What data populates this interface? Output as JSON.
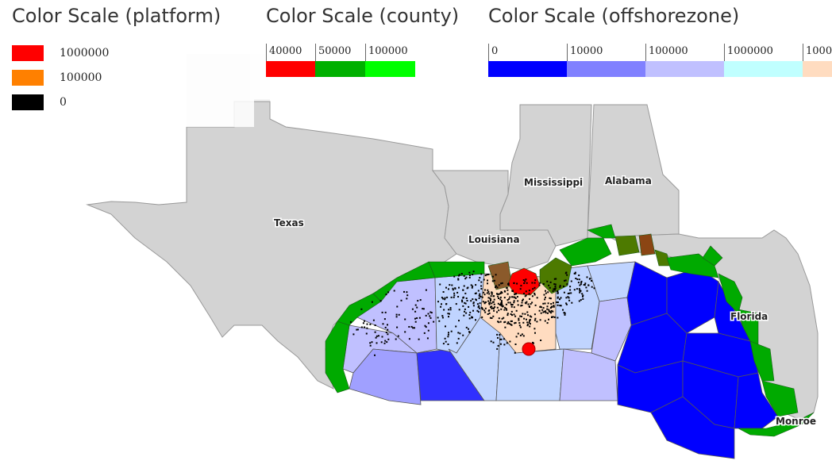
{
  "legends": {
    "platform": {
      "title": "Color Scale (platform)",
      "items": [
        {
          "label": "1000000",
          "color": "#ff0000"
        },
        {
          "label": "100000",
          "color": "#ff8000"
        },
        {
          "label": "0",
          "color": "#000000"
        }
      ]
    },
    "county": {
      "title": "Color Scale (county)",
      "items": [
        {
          "label": "40000",
          "color": "#ff0000"
        },
        {
          "label": "50000",
          "color": "#00b000"
        },
        {
          "label": "100000",
          "color": "#00ff00"
        }
      ]
    },
    "offshorezone": {
      "title": "Color Scale (offshorezone)",
      "items": [
        {
          "label": "0",
          "color": "#0000ff"
        },
        {
          "label": "10000",
          "color": "#8080ff"
        },
        {
          "label": "100000",
          "color": "#c0c0ff"
        },
        {
          "label": "1000000",
          "color": "#c0ffff"
        },
        {
          "label": "1000",
          "color": "#ffdcc0"
        }
      ]
    }
  },
  "map": {
    "labels": {
      "texas": "Texas",
      "louisiana": "Louisiana",
      "mississippi": "Mississippi",
      "alabama": "Alabama",
      "florida": "Florida",
      "monroe": "Monroe"
    },
    "colors": {
      "land": "#d3d3d3",
      "land_light": "#f0f0f0",
      "county_green": "#00aa00",
      "county_olive": "#4d7a00",
      "county_brown": "#8b4513",
      "county_red": "#ff0000",
      "platform_dots": "#000000"
    }
  }
}
